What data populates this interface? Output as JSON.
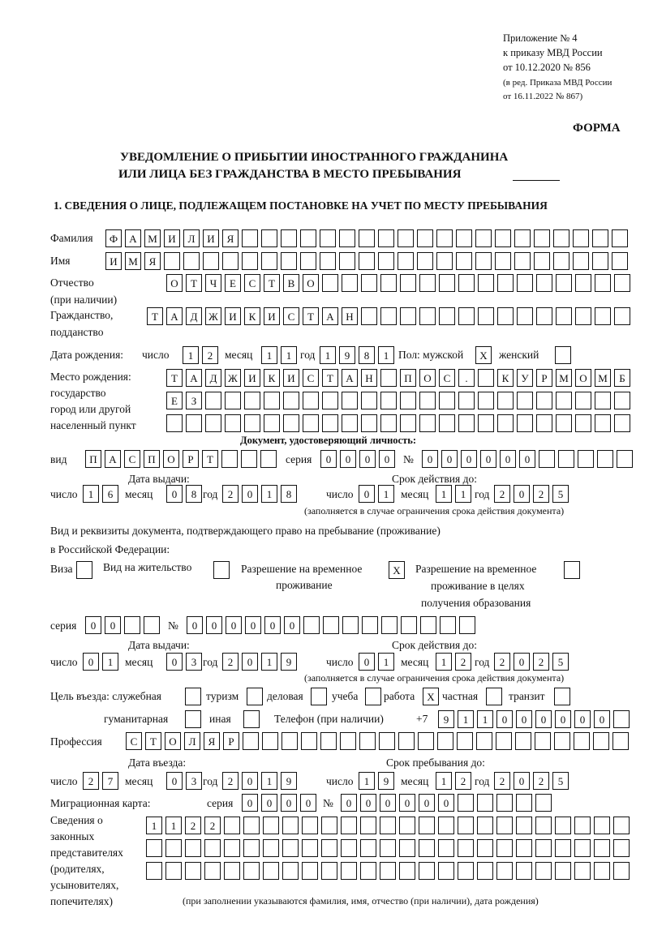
{
  "header": {
    "appendix": [
      "Приложение № 4",
      "к приказу МВД России",
      "от 10.12.2020 № 856"
    ],
    "edition": [
      "(в ред. Приказа МВД России",
      "от 16.11.2022 № 867)"
    ],
    "form_label": "ФОРМА",
    "title_line1": "УВЕДОМЛЕНИЕ О ПРИБЫТИИ ИНОСТРАННОГО ГРАЖДАНИНА",
    "title_line2": "ИЛИ ЛИЦА БЕЗ ГРАЖДАНСТВА В МЕСТО ПРЕБЫВАНИЯ",
    "section1": "1. СВЕДЕНИЯ О ЛИЦЕ, ПОДЛЕЖАЩЕМ ПОСТАНОВКЕ НА УЧЕТ ПО МЕСТУ ПРЕБЫВАНИЯ"
  },
  "person": {
    "surname_label": "Фамилия",
    "surname": "ФАМИЛИЯ",
    "name_label": "Имя",
    "name": "ИМЯ",
    "patronymic_label": "Отчество",
    "patronymic_note": "(при наличии)",
    "patronymic": "ОТЧЕСТВО",
    "citizenship_label": "Гражданство,",
    "citizenship_label2": "подданство",
    "citizenship": "ТАДЖИКИСТАН",
    "dob_label": "Дата рождения:",
    "day_label": "число",
    "month_label": "месяц",
    "year_label": "год",
    "dob_day": "12",
    "dob_month": "11",
    "dob_year": "1981",
    "sex_label": "Пол: мужской",
    "female_label": "женский",
    "male_mark": "X",
    "female_mark": "",
    "birthplace_labels": [
      "Место рождения:",
      "государство",
      "город или другой",
      "населенный пункт"
    ],
    "birthplace_rows": [
      "ТАДЖИКИСТАН ПОС. КУРМОМБ",
      "ЕЗ",
      ""
    ]
  },
  "id_doc": {
    "heading": "Документ, удостоверяющий личность:",
    "kind_label": "вид",
    "kind": "ПАСПОРТ",
    "series_label": "серия",
    "series": "0000",
    "number_label": "№",
    "number": "000000",
    "issue_label": "Дата выдачи:",
    "valid_label": "Срок действия до:",
    "day_label": "число",
    "month_label": "месяц",
    "year_label": "год",
    "issue_day": "16",
    "issue_month": "08",
    "issue_year": "2018",
    "valid_day": "01",
    "valid_month": "11",
    "valid_year": "2025",
    "note": "(заполняется в случае ограничения срока действия документа)"
  },
  "stay_doc": {
    "heading1": "Вид и реквизиты документа, подтверждающего право на пребывание (проживание)",
    "heading2": "в Российской Федерации:",
    "visa_label": "Виза",
    "visa_mark": "",
    "residence_label": "Вид на жительство",
    "residence_mark": "",
    "trp_label1": "Разрешение на временное",
    "trp_label2": "проживание",
    "trp_mark": "X",
    "trp_edu_label1": "Разрешение на временное",
    "trp_edu_label2": "проживание в целях",
    "trp_edu_label3": "получения образования",
    "trp_edu_mark": "",
    "series_label": "серия",
    "series": "00",
    "number_label": "№",
    "number": "000000",
    "issue_label": "Дата выдачи:",
    "valid_label": "Срок действия до:",
    "day_label": "число",
    "month_label": "месяц",
    "year_label": "год",
    "issue_day": "01",
    "issue_month": "03",
    "issue_year": "2019",
    "valid_day": "01",
    "valid_month": "12",
    "valid_year": "2025",
    "note": "(заполняется в случае ограничения срока действия документа)"
  },
  "purpose": {
    "label": "Цель въезда: служебная",
    "options": [
      {
        "label": "служебная",
        "mark": ""
      },
      {
        "label": "туризм",
        "mark": ""
      },
      {
        "label": "деловая",
        "mark": ""
      },
      {
        "label": "учеба",
        "mark": ""
      },
      {
        "label": "работа",
        "mark": "X"
      },
      {
        "label": "частная",
        "mark": ""
      },
      {
        "label": "транзит",
        "mark": ""
      },
      {
        "label": "гуманитарная",
        "mark": ""
      },
      {
        "label": "иная",
        "mark": ""
      }
    ],
    "phone_label": "Телефон (при наличии)",
    "phone_prefix": "+7",
    "phone": "911000000"
  },
  "profession": {
    "label": "Профессия",
    "value": "СТОЛЯР"
  },
  "entry": {
    "entry_label": "Дата въезда:",
    "stay_until_label": "Срок пребывания до:",
    "day_label": "число",
    "month_label": "месяц",
    "year_label": "год",
    "entry_day": "27",
    "entry_month": "03",
    "entry_year": "2019",
    "until_day": "19",
    "until_month": "12",
    "until_year": "2025"
  },
  "migration_card": {
    "label": "Миграционная карта:",
    "series_label": "серия",
    "series": "0000",
    "number_label": "№",
    "number": "000000"
  },
  "representatives": {
    "labels": [
      "Сведения о",
      "законных",
      "представителях",
      "(родителях,",
      "усыновителях,",
      "попечителях)"
    ],
    "rows": [
      "1122",
      "",
      ""
    ],
    "note": "(при заполнении указываются фамилия, имя, отчество (при наличии), дата рождения)"
  }
}
